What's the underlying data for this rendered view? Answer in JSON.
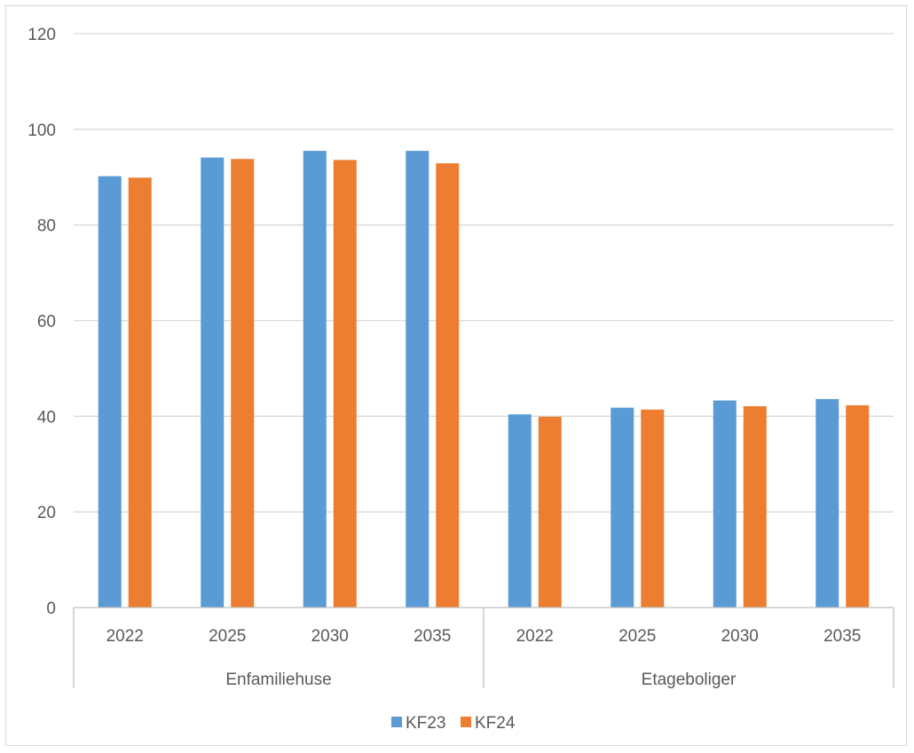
{
  "chart_data": {
    "type": "bar",
    "groups": [
      {
        "name": "Enfamiliehuse",
        "categories": [
          "2022",
          "2025",
          "2030",
          "2035"
        ]
      },
      {
        "name": "Etageboliger",
        "categories": [
          "2022",
          "2025",
          "2030",
          "2035"
        ]
      }
    ],
    "series": [
      {
        "name": "KF23",
        "color": "#5b9bd5",
        "values": [
          90.2,
          94.1,
          95.5,
          95.5,
          40.4,
          41.8,
          43.3,
          43.6
        ]
      },
      {
        "name": "KF24",
        "color": "#ed7d31",
        "values": [
          89.9,
          93.8,
          93.6,
          92.9,
          39.9,
          41.4,
          42.1,
          42.3
        ]
      }
    ],
    "ylim": [
      0,
      120
    ],
    "yticks": [
      "0",
      "20",
      "40",
      "60",
      "80",
      "100",
      "120"
    ],
    "grid": true,
    "legend": "bottom"
  }
}
